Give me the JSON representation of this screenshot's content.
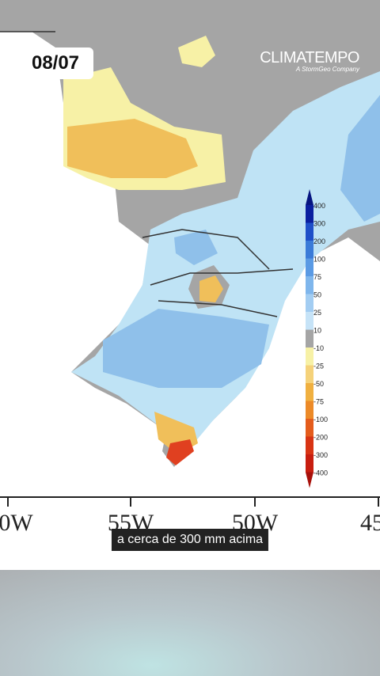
{
  "header": {
    "date": "08/07",
    "logo": "CLIMATEMPO",
    "logo_sub": "A StormGeo Company"
  },
  "colorbar": {
    "labels": [
      400,
      300,
      200,
      100,
      75,
      50,
      25,
      10,
      -10,
      -25,
      -50,
      -75,
      -100,
      -200,
      -300,
      -400
    ]
  },
  "longitudes": [
    "0W",
    "55W",
    "50W",
    "45"
  ],
  "caption": "a cerca de 300 mm acima"
}
